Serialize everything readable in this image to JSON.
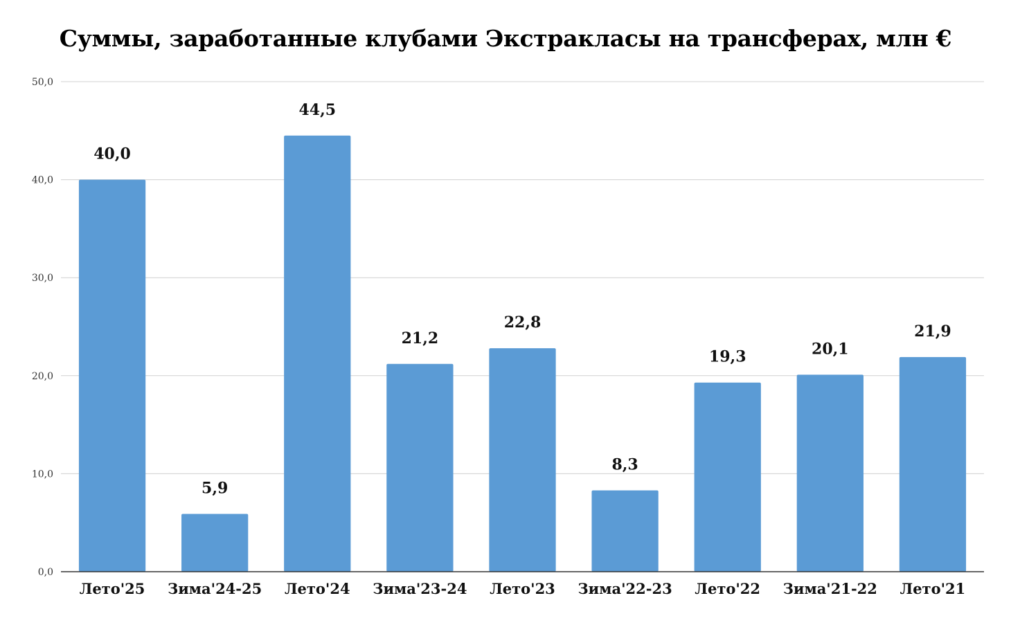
{
  "chart_data": {
    "type": "bar",
    "title": "Суммы, заработанные клубами Экстракласы на трансферах, млн €",
    "categories": [
      "Лето'25",
      "Зима'24-25",
      "Лето'24",
      "Зима'23-24",
      "Лето'23",
      "Зима'22-23",
      "Лето'22",
      "Зима'21-22",
      "Лето'21"
    ],
    "values": [
      40.0,
      5.9,
      44.5,
      21.2,
      22.8,
      8.3,
      19.3,
      20.1,
      21.9
    ],
    "data_labels": [
      "40,0",
      "5,9",
      "44,5",
      "21,2",
      "22,8",
      "8,3",
      "19,3",
      "20,1",
      "21,9"
    ],
    "y_ticks": [
      0,
      10,
      20,
      30,
      40,
      50
    ],
    "y_tick_labels": [
      "0,0",
      "10,0",
      "20,0",
      "30,0",
      "40,0",
      "50,0"
    ],
    "ylim": [
      0,
      50
    ],
    "xlabel": "",
    "ylabel": "",
    "grid": true,
    "legend": "none",
    "bar_color": "#5b9bd5",
    "grid_color": "#d0d0d0",
    "axis_color": "#333333"
  }
}
